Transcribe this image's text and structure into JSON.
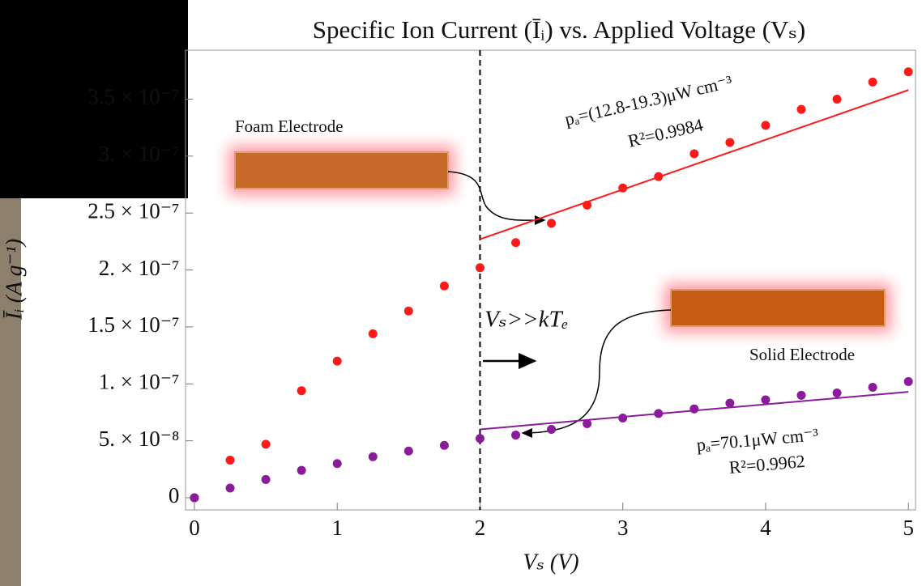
{
  "chart_data": {
    "type": "scatter",
    "title": "Specific Ion Current (Īᵢ) vs. Applied Voltage (Vₛ)",
    "x_label": "Vₛ (V)",
    "y_label": "Īᵢ (A g⁻¹)",
    "x": [
      0,
      0.25,
      0.5,
      0.75,
      1,
      1.25,
      1.5,
      1.75,
      2,
      2.25,
      2.5,
      2.75,
      3,
      3.25,
      3.5,
      3.75,
      4,
      4.25,
      4.5,
      4.75,
      5
    ],
    "series": [
      {
        "color": "#ff1a1a",
        "values": [
          0,
          3.3e-08,
          4.7e-08,
          9.4e-08,
          1.2e-07,
          1.44e-07,
          1.64e-07,
          1.86e-07,
          2.02e-07,
          2.24e-07,
          2.41e-07,
          2.57e-07,
          2.72e-07,
          2.82e-07,
          3.02e-07,
          3.12e-07,
          3.27e-07,
          3.41e-07,
          3.5e-07,
          3.65e-07,
          3.74e-07
        ],
        "fit": {
          "x": [
            2,
            5
          ],
          "values": [
            2.27e-07,
            3.58e-07
          ]
        }
      },
      {
        "color": "#8a1c9c",
        "values": [
          0,
          8.5e-09,
          1.6e-08,
          2.4e-08,
          3e-08,
          3.6e-08,
          4.1e-08,
          4.6e-08,
          5.2e-08,
          5.5e-08,
          6e-08,
          6.5e-08,
          7e-08,
          7.4e-08,
          7.8e-08,
          8.3e-08,
          8.6e-08,
          9e-08,
          9.2e-08,
          9.7e-08,
          1.02e-07
        ],
        "fit": {
          "x": [
            2,
            5
          ],
          "values": [
            6e-08,
            9.3e-08
          ]
        }
      }
    ],
    "vline": 2,
    "xlim": [
      -0.06,
      5.05
    ],
    "ylim": [
      -1.07e-08,
      3.93e-07
    ],
    "xticks": [
      0,
      1,
      2,
      3,
      4,
      5
    ],
    "yticks": [
      0,
      {
        "value": 5e-08,
        "label": "5. × 10⁻⁸"
      },
      {
        "value": 1e-07,
        "label": "1. × 10⁻⁷"
      },
      {
        "value": 1.5e-07,
        "label": "1.5 × 10⁻⁷"
      },
      {
        "value": 2e-07,
        "label": "2. × 10⁻⁷"
      },
      {
        "value": 2.5e-07,
        "label": "2.5 × 10⁻⁷"
      },
      {
        "value": 3e-07,
        "label": "3. × 10⁻⁷"
      },
      {
        "value": 3.5e-07,
        "label": "3.5 × 10⁻⁷"
      }
    ],
    "annotations": [
      "Foam Electrode",
      "Solid Electrode",
      "Vₛ>>kTₑ",
      "pₐ=(12.8-19.3)μW cm⁻³",
      "R²=0.9984",
      "pₐ=70.1μW cm⁻³",
      "R²=0.9962"
    ]
  }
}
